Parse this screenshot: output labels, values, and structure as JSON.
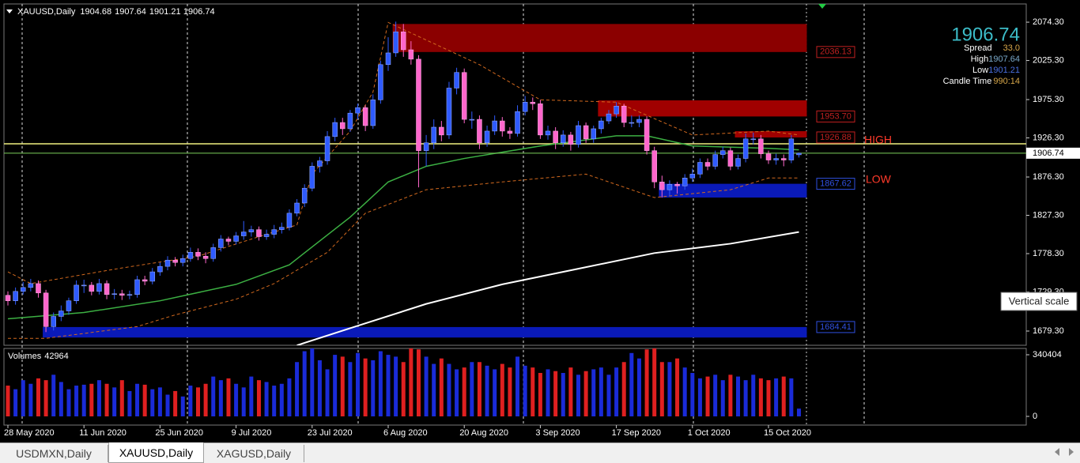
{
  "header": {
    "symbol": "XAUUSD,Daily"
  },
  "info": {
    "spread_label": "Spread",
    "spread": "33.0",
    "high_label": "High",
    "low_label": "Low",
    "candle_time_label": "Candle Time",
    "candle_time": "990:14"
  },
  "tooltip": "Vertical scale",
  "tabs": [
    "USDMXN,Daily",
    "XAUUSD,Daily",
    "XAGUSD,Daily"
  ],
  "annotations": [
    "HIGH",
    "LOW"
  ],
  "chart_data": {
    "type": "candlestick",
    "bull_color": "#2f5bff",
    "bear_color": "#ff66cc",
    "ylim": [
      1661.1,
      2097.6
    ],
    "yticks": [
      {
        "value": 2074.3,
        "label": "2074.30"
      },
      {
        "value": 2025.3,
        "label": "2025.30"
      },
      {
        "value": 1975.3,
        "label": "1975.30"
      },
      {
        "value": 1926.3,
        "label": "1926.30"
      },
      {
        "value": 1876.3,
        "label": "1876.30"
      },
      {
        "value": 1827.3,
        "label": "1827.30"
      },
      {
        "value": 1778.3,
        "label": "1778.30"
      },
      {
        "value": 1729.3,
        "label": "1729.30"
      },
      {
        "value": 1679.3,
        "label": "1679.30"
      }
    ],
    "xticks": [
      {
        "value": 0,
        "label": "28 May 2020"
      },
      {
        "value": 10,
        "label": "11 Jun 2020"
      },
      {
        "value": 20,
        "label": "25 Jun 2020"
      },
      {
        "value": 30,
        "label": "9 Jul 2020"
      },
      {
        "value": 40,
        "label": "23 Jul 2020"
      },
      {
        "value": 50,
        "label": "6 Aug 2020"
      },
      {
        "value": 60,
        "label": "20 Aug 2020"
      },
      {
        "value": 70,
        "label": "3 Sep 2020"
      },
      {
        "value": 80,
        "label": "17 Sep 2020"
      },
      {
        "value": 90,
        "label": "1 Oct 2020"
      },
      {
        "value": 100,
        "label": "15 Oct 2020"
      }
    ],
    "ohlc": [
      [
        1725,
        1730,
        1712,
        1718
      ],
      [
        1718,
        1735,
        1713,
        1730
      ],
      [
        1730,
        1742,
        1726,
        1735
      ],
      [
        1735,
        1746,
        1730,
        1740
      ],
      [
        1740,
        1744,
        1722,
        1728
      ],
      [
        1728,
        1732,
        1678,
        1685
      ],
      [
        1685,
        1703,
        1680,
        1698
      ],
      [
        1698,
        1712,
        1692,
        1705
      ],
      [
        1705,
        1722,
        1700,
        1718
      ],
      [
        1718,
        1744,
        1714,
        1738
      ],
      [
        1738,
        1745,
        1728,
        1738
      ],
      [
        1738,
        1742,
        1725,
        1730
      ],
      [
        1730,
        1746,
        1726,
        1740
      ],
      [
        1740,
        1744,
        1720,
        1726
      ],
      [
        1726,
        1733,
        1720,
        1727
      ],
      [
        1727,
        1732,
        1719,
        1725
      ],
      [
        1725,
        1731,
        1720,
        1726
      ],
      [
        1726,
        1750,
        1722,
        1745
      ],
      [
        1745,
        1750,
        1738,
        1743
      ],
      [
        1743,
        1760,
        1739,
        1755
      ],
      [
        1755,
        1767,
        1750,
        1762
      ],
      [
        1762,
        1775,
        1757,
        1770
      ],
      [
        1770,
        1774,
        1762,
        1767
      ],
      [
        1767,
        1777,
        1762,
        1772
      ],
      [
        1772,
        1786,
        1768,
        1780
      ],
      [
        1780,
        1785,
        1770,
        1775
      ],
      [
        1775,
        1780,
        1766,
        1772
      ],
      [
        1772,
        1791,
        1768,
        1786
      ],
      [
        1786,
        1802,
        1781,
        1797
      ],
      [
        1797,
        1800,
        1789,
        1794
      ],
      [
        1794,
        1806,
        1790,
        1801
      ],
      [
        1801,
        1820,
        1796,
        1806
      ],
      [
        1806,
        1814,
        1800,
        1809
      ],
      [
        1809,
        1813,
        1795,
        1800
      ],
      [
        1800,
        1809,
        1796,
        1803
      ],
      [
        1803,
        1815,
        1798,
        1809
      ],
      [
        1809,
        1818,
        1804,
        1812
      ],
      [
        1812,
        1835,
        1808,
        1830
      ],
      [
        1830,
        1848,
        1826,
        1843
      ],
      [
        1843,
        1867,
        1838,
        1862
      ],
      [
        1862,
        1895,
        1858,
        1890
      ],
      [
        1890,
        1902,
        1882,
        1897
      ],
      [
        1897,
        1935,
        1892,
        1928
      ],
      [
        1928,
        1952,
        1922,
        1946
      ],
      [
        1946,
        1952,
        1930,
        1938
      ],
      [
        1938,
        1962,
        1934,
        1958
      ],
      [
        1958,
        1970,
        1950,
        1965
      ],
      [
        1965,
        1968,
        1935,
        1942
      ],
      [
        1942,
        1982,
        1938,
        1975
      ],
      [
        1975,
        2025,
        1970,
        2020
      ],
      [
        2020,
        2055,
        2012,
        2035
      ],
      [
        2035,
        2075,
        2030,
        2062
      ],
      [
        2062,
        2072,
        2030,
        2039
      ],
      [
        2039,
        2050,
        2020,
        2027
      ],
      [
        2027,
        2032,
        1863,
        1910
      ],
      [
        1910,
        1930,
        1890,
        1920
      ],
      [
        1920,
        1950,
        1912,
        1940
      ],
      [
        1940,
        1948,
        1922,
        1930
      ],
      [
        1930,
        1998,
        1925,
        1990
      ],
      [
        1990,
        2016,
        1982,
        2010
      ],
      [
        2010,
        2015,
        1945,
        1950
      ],
      [
        1950,
        1960,
        1938,
        1950
      ],
      [
        1950,
        1955,
        1912,
        1920
      ],
      [
        1920,
        1942,
        1915,
        1935
      ],
      [
        1935,
        1955,
        1930,
        1948
      ],
      [
        1948,
        1953,
        1928,
        1935
      ],
      [
        1935,
        1940,
        1925,
        1932
      ],
      [
        1932,
        1968,
        1928,
        1960
      ],
      [
        1960,
        1980,
        1955,
        1972
      ],
      [
        1972,
        1978,
        1962,
        1970
      ],
      [
        1970,
        1975,
        1925,
        1930
      ],
      [
        1930,
        1942,
        1924,
        1935
      ],
      [
        1935,
        1940,
        1912,
        1920
      ],
      [
        1920,
        1936,
        1915,
        1930
      ],
      [
        1930,
        1934,
        1910,
        1918
      ],
      [
        1918,
        1948,
        1914,
        1942
      ],
      [
        1942,
        1946,
        1920,
        1925
      ],
      [
        1925,
        1942,
        1920,
        1938
      ],
      [
        1938,
        1952,
        1932,
        1948
      ],
      [
        1948,
        1962,
        1944,
        1957
      ],
      [
        1957,
        1972,
        1952,
        1967
      ],
      [
        1967,
        1970,
        1940,
        1946
      ],
      [
        1946,
        1955,
        1940,
        1946
      ],
      [
        1946,
        1955,
        1940,
        1950
      ],
      [
        1950,
        1954,
        1905,
        1910
      ],
      [
        1910,
        1915,
        1862,
        1870
      ],
      [
        1870,
        1878,
        1850,
        1860
      ],
      [
        1860,
        1872,
        1852,
        1867
      ],
      [
        1867,
        1870,
        1855,
        1865
      ],
      [
        1865,
        1880,
        1860,
        1875
      ],
      [
        1875,
        1887,
        1870,
        1880
      ],
      [
        1880,
        1900,
        1875,
        1895
      ],
      [
        1895,
        1900,
        1885,
        1890
      ],
      [
        1890,
        1910,
        1886,
        1905
      ],
      [
        1905,
        1915,
        1900,
        1910
      ],
      [
        1910,
        1914,
        1885,
        1890
      ],
      [
        1890,
        1905,
        1886,
        1900
      ],
      [
        1900,
        1932,
        1895,
        1925
      ],
      [
        1925,
        1933,
        1918,
        1925
      ],
      [
        1925,
        1930,
        1900,
        1906
      ],
      [
        1906,
        1910,
        1893,
        1898
      ],
      [
        1898,
        1906,
        1892,
        1900
      ],
      [
        1900,
        1905,
        1890,
        1898
      ],
      [
        1898,
        1930,
        1894,
        1925
      ],
      [
        1904.68,
        1907.64,
        1901.21,
        1906.74
      ]
    ],
    "overlays": [
      {
        "color": "#3cb043",
        "width": 1.5,
        "dash": false,
        "x": [
          0,
          10,
          20,
          30,
          37,
          45,
          50,
          55,
          60,
          70,
          80,
          84,
          90,
          100,
          104
        ],
        "values": [
          1695,
          1703,
          1718,
          1739,
          1764,
          1825,
          1870,
          1890,
          1900,
          1916,
          1929,
          1929,
          1916,
          1913,
          1911
        ]
      },
      {
        "color": "#ffffff",
        "width": 2,
        "dash": false,
        "x": [
          38,
          46,
          55,
          65,
          75,
          85,
          95,
          104
        ],
        "values": [
          1661,
          1686,
          1714,
          1739,
          1759,
          1779,
          1791,
          1806
        ]
      },
      {
        "color": "#d2691e",
        "width": 1,
        "dash": true,
        "x": [
          0,
          3,
          15,
          25,
          33,
          38,
          40,
          45,
          48,
          50,
          62,
          70,
          80,
          90,
          100,
          104
        ],
        "values": [
          1755,
          1740,
          1760,
          1775,
          1800,
          1815,
          1880,
          1935,
          1985,
          2074,
          2020,
          1975,
          1972,
          1930,
          1935,
          1930
        ]
      },
      {
        "color": "#d2691e",
        "width": 1,
        "dash": true,
        "x": [
          0,
          5,
          17,
          22,
          30,
          35,
          42,
          47,
          55,
          65,
          76,
          85,
          95,
          100,
          104
        ],
        "values": [
          1670,
          1670,
          1685,
          1700,
          1720,
          1740,
          1780,
          1830,
          1860,
          1870,
          1880,
          1850,
          1860,
          1875,
          1875
        ]
      }
    ],
    "zones": [
      {
        "level": 2036.13,
        "edge": 2072,
        "start": 51,
        "color": "#8b0000",
        "label_color": "#c02020"
      },
      {
        "level": {
          "value": 1953.7,
          "label": "1953.70"
        },
        "edge": 1974.3,
        "start": 78,
        "color": "#a00000",
        "label_color": "#c02020"
      },
      {
        "level": 1926.88,
        "edge": 1934.9,
        "start": 96,
        "color": "#a00000",
        "label_color": "#c02020"
      },
      {
        "level": 1867.62,
        "edge": 1850,
        "start": 86,
        "color": "#0a1ab8",
        "label_color": "#3050e0"
      },
      {
        "level": 1684.41,
        "edge": 1671,
        "start": 5,
        "color": "#0a1ab8",
        "label_color": "#3050e0"
      }
    ],
    "levels": [
      {
        "price": 1918.7,
        "color": "#f0f080"
      }
    ],
    "volume_title": "Volumes",
    "volume_up_color": "#1a2bd8",
    "volume_down_color": "#e02020",
    "vlim": [
      -48000,
      375320
    ],
    "vticks": [
      340404,
      0
    ],
    "volumes": [
      170000,
      150000,
      200000,
      180000,
      210000,
      200000,
      230000,
      190000,
      150000,
      170000,
      175000,
      180000,
      200000,
      180000,
      160000,
      200000,
      140000,
      180000,
      175000,
      150000,
      160000,
      120000,
      140000,
      110000,
      170000,
      160000,
      180000,
      220000,
      200000,
      210000,
      180000,
      160000,
      220000,
      200000,
      190000,
      170000,
      180000,
      210000,
      300000,
      360000,
      380000,
      310000,
      260000,
      340000,
      330000,
      300000,
      350000,
      320000,
      310000,
      360000,
      340000,
      330000,
      300000,
      390000,
      370000,
      330000,
      290000,
      320000,
      290000,
      260000,
      270000,
      300000,
      300000,
      280000,
      260000,
      290000,
      270000,
      330000,
      280000,
      270000,
      240000,
      260000,
      250000,
      240000,
      270000,
      230000,
      250000,
      260000,
      270000,
      230000,
      270000,
      300000,
      350000,
      320000,
      370000,
      390000,
      300000,
      300000,
      320000,
      270000,
      240000,
      210000,
      220000,
      230000,
      200000,
      230000,
      220000,
      200000,
      230000,
      210000,
      200000,
      210000,
      220000,
      210000,
      42964
    ]
  }
}
